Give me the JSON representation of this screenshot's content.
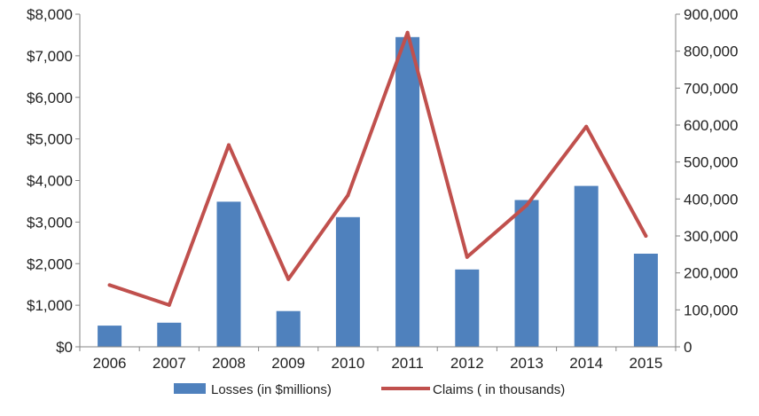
{
  "chart_data": {
    "type": "bar",
    "title": "",
    "xlabel": "",
    "categories": [
      "2006",
      "2007",
      "2008",
      "2009",
      "2010",
      "2011",
      "2012",
      "2013",
      "2014",
      "2015"
    ],
    "series": [
      {
        "name": "Losses (in $millions)",
        "type": "bar",
        "axis": "left",
        "color": "#4F81BD",
        "values": [
          510,
          580,
          3490,
          860,
          3120,
          7450,
          1860,
          3530,
          3870,
          2240
        ]
      },
      {
        "name": "Claims ( in thousands)",
        "type": "line",
        "axis": "right",
        "color": "#C0504D",
        "values": [
          167000,
          113000,
          546000,
          183000,
          410000,
          850000,
          243000,
          383000,
          596000,
          300000
        ]
      }
    ],
    "y_left": {
      "lim": [
        0,
        8000
      ],
      "ticks": [
        0,
        1000,
        2000,
        3000,
        4000,
        5000,
        6000,
        7000,
        8000
      ],
      "tick_labels": [
        "$0",
        "$1,000",
        "$2,000",
        "$3,000",
        "$4,000",
        "$5,000",
        "$6,000",
        "$7,000",
        "$8,000"
      ]
    },
    "y_right": {
      "lim": [
        0,
        900000
      ],
      "ticks": [
        0,
        100000,
        200000,
        300000,
        400000,
        500000,
        600000,
        700000,
        800000,
        900000
      ],
      "tick_labels": [
        "0",
        "100,000",
        "200,000",
        "300,000",
        "400,000",
        "500,000",
        "600,000",
        "700,000",
        "800,000",
        "900,000"
      ]
    },
    "grid": false,
    "legend_position": "bottom"
  }
}
